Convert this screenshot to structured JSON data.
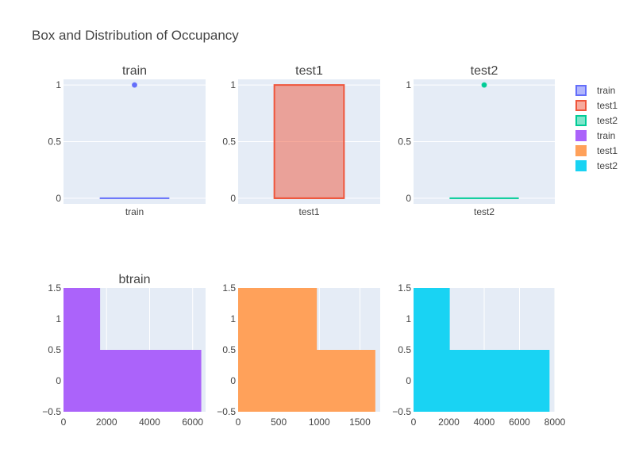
{
  "title": "Box and Distribution of Occupancy",
  "colors": {
    "train": "#636efa",
    "test1": "#EF553B",
    "test2": "#00cc96",
    "train_hist": "#ab63fa",
    "test1_hist": "#FFA15A",
    "test2_hist": "#19d3f3",
    "plot_bg": "#E5ECF6",
    "grid": "#ffffff"
  },
  "legend": {
    "placement": "right",
    "items": [
      {
        "label": "train",
        "kind": "box",
        "color": "#636efa"
      },
      {
        "label": "test1",
        "kind": "box",
        "color": "#EF553B"
      },
      {
        "label": "test2",
        "kind": "box",
        "color": "#00cc96"
      },
      {
        "label": "train",
        "kind": "bar",
        "color": "#ab63fa"
      },
      {
        "label": "test1",
        "kind": "bar",
        "color": "#FFA15A"
      },
      {
        "label": "test2",
        "kind": "bar",
        "color": "#19d3f3"
      }
    ]
  },
  "chart_data": [
    {
      "type": "box",
      "subplot_title": "train",
      "category": "train",
      "color": "#636efa",
      "q1": 0,
      "median": 0,
      "q3": 0,
      "lowerfence": 0,
      "upperfence": 0,
      "outliers": [
        1
      ],
      "ylim": [
        -0.05,
        1.05
      ],
      "yticks": [
        0,
        0.5,
        1
      ],
      "ytick_labels": [
        "0",
        "0.5",
        "1"
      ]
    },
    {
      "type": "box",
      "subplot_title": "test1",
      "category": "test1",
      "color": "#EF553B",
      "q1": 0,
      "median": 0,
      "q3": 1,
      "lowerfence": 0,
      "upperfence": 1,
      "outliers": [],
      "ylim": [
        -0.05,
        1.05
      ],
      "yticks": [
        0,
        0.5,
        1
      ],
      "ytick_labels": [
        "0",
        "0.5",
        "1"
      ]
    },
    {
      "type": "box",
      "subplot_title": "test2",
      "category": "test2",
      "color": "#00cc96",
      "q1": 0,
      "median": 0,
      "q3": 0,
      "lowerfence": 0,
      "upperfence": 0,
      "outliers": [
        1
      ],
      "ylim": [
        -0.05,
        1.05
      ],
      "yticks": [
        0,
        0.5,
        1
      ],
      "ytick_labels": [
        "0",
        "0.5",
        "1"
      ]
    },
    {
      "type": "bar",
      "orientation": "h",
      "subplot_title": "btrain",
      "color": "#ab63fa",
      "bars": [
        {
          "y": 0,
          "count": 6400
        },
        {
          "y": 1,
          "count": 1700
        }
      ],
      "xlim": [
        0,
        6600
      ],
      "xticks": [
        0,
        2000,
        4000,
        6000
      ],
      "xtick_labels": [
        "0",
        "2000",
        "4000",
        "6000"
      ],
      "ylim": [
        -0.5,
        1.5
      ],
      "yticks": [
        -0.5,
        0,
        0.5,
        1,
        1.5
      ],
      "ytick_labels": [
        "−0.5",
        "0",
        "0.5",
        "1",
        "1.5"
      ]
    },
    {
      "type": "bar",
      "orientation": "h",
      "subplot_title": "",
      "color": "#FFA15A",
      "bars": [
        {
          "y": 0,
          "count": 1690
        },
        {
          "y": 1,
          "count": 970
        }
      ],
      "xlim": [
        0,
        1750
      ],
      "xticks": [
        0,
        500,
        1000,
        1500
      ],
      "xtick_labels": [
        "0",
        "500",
        "1000",
        "1500"
      ],
      "ylim": [
        -0.5,
        1.5
      ],
      "yticks": [
        -0.5,
        0,
        0.5,
        1,
        1.5
      ],
      "ytick_labels": [
        "−0.5",
        "0",
        "0.5",
        "1",
        "1.5"
      ]
    },
    {
      "type": "bar",
      "orientation": "h",
      "subplot_title": "",
      "color": "#19d3f3",
      "bars": [
        {
          "y": 0,
          "count": 7700
        },
        {
          "y": 1,
          "count": 2050
        }
      ],
      "xlim": [
        0,
        8000
      ],
      "xticks": [
        0,
        2000,
        4000,
        6000,
        8000
      ],
      "xtick_labels": [
        "0",
        "2000",
        "4000",
        "6000",
        "8000"
      ],
      "ylim": [
        -0.5,
        1.5
      ],
      "yticks": [
        -0.5,
        0,
        0.5,
        1,
        1.5
      ],
      "ytick_labels": [
        "−0.5",
        "0",
        "0.5",
        "1",
        "1.5"
      ]
    }
  ]
}
